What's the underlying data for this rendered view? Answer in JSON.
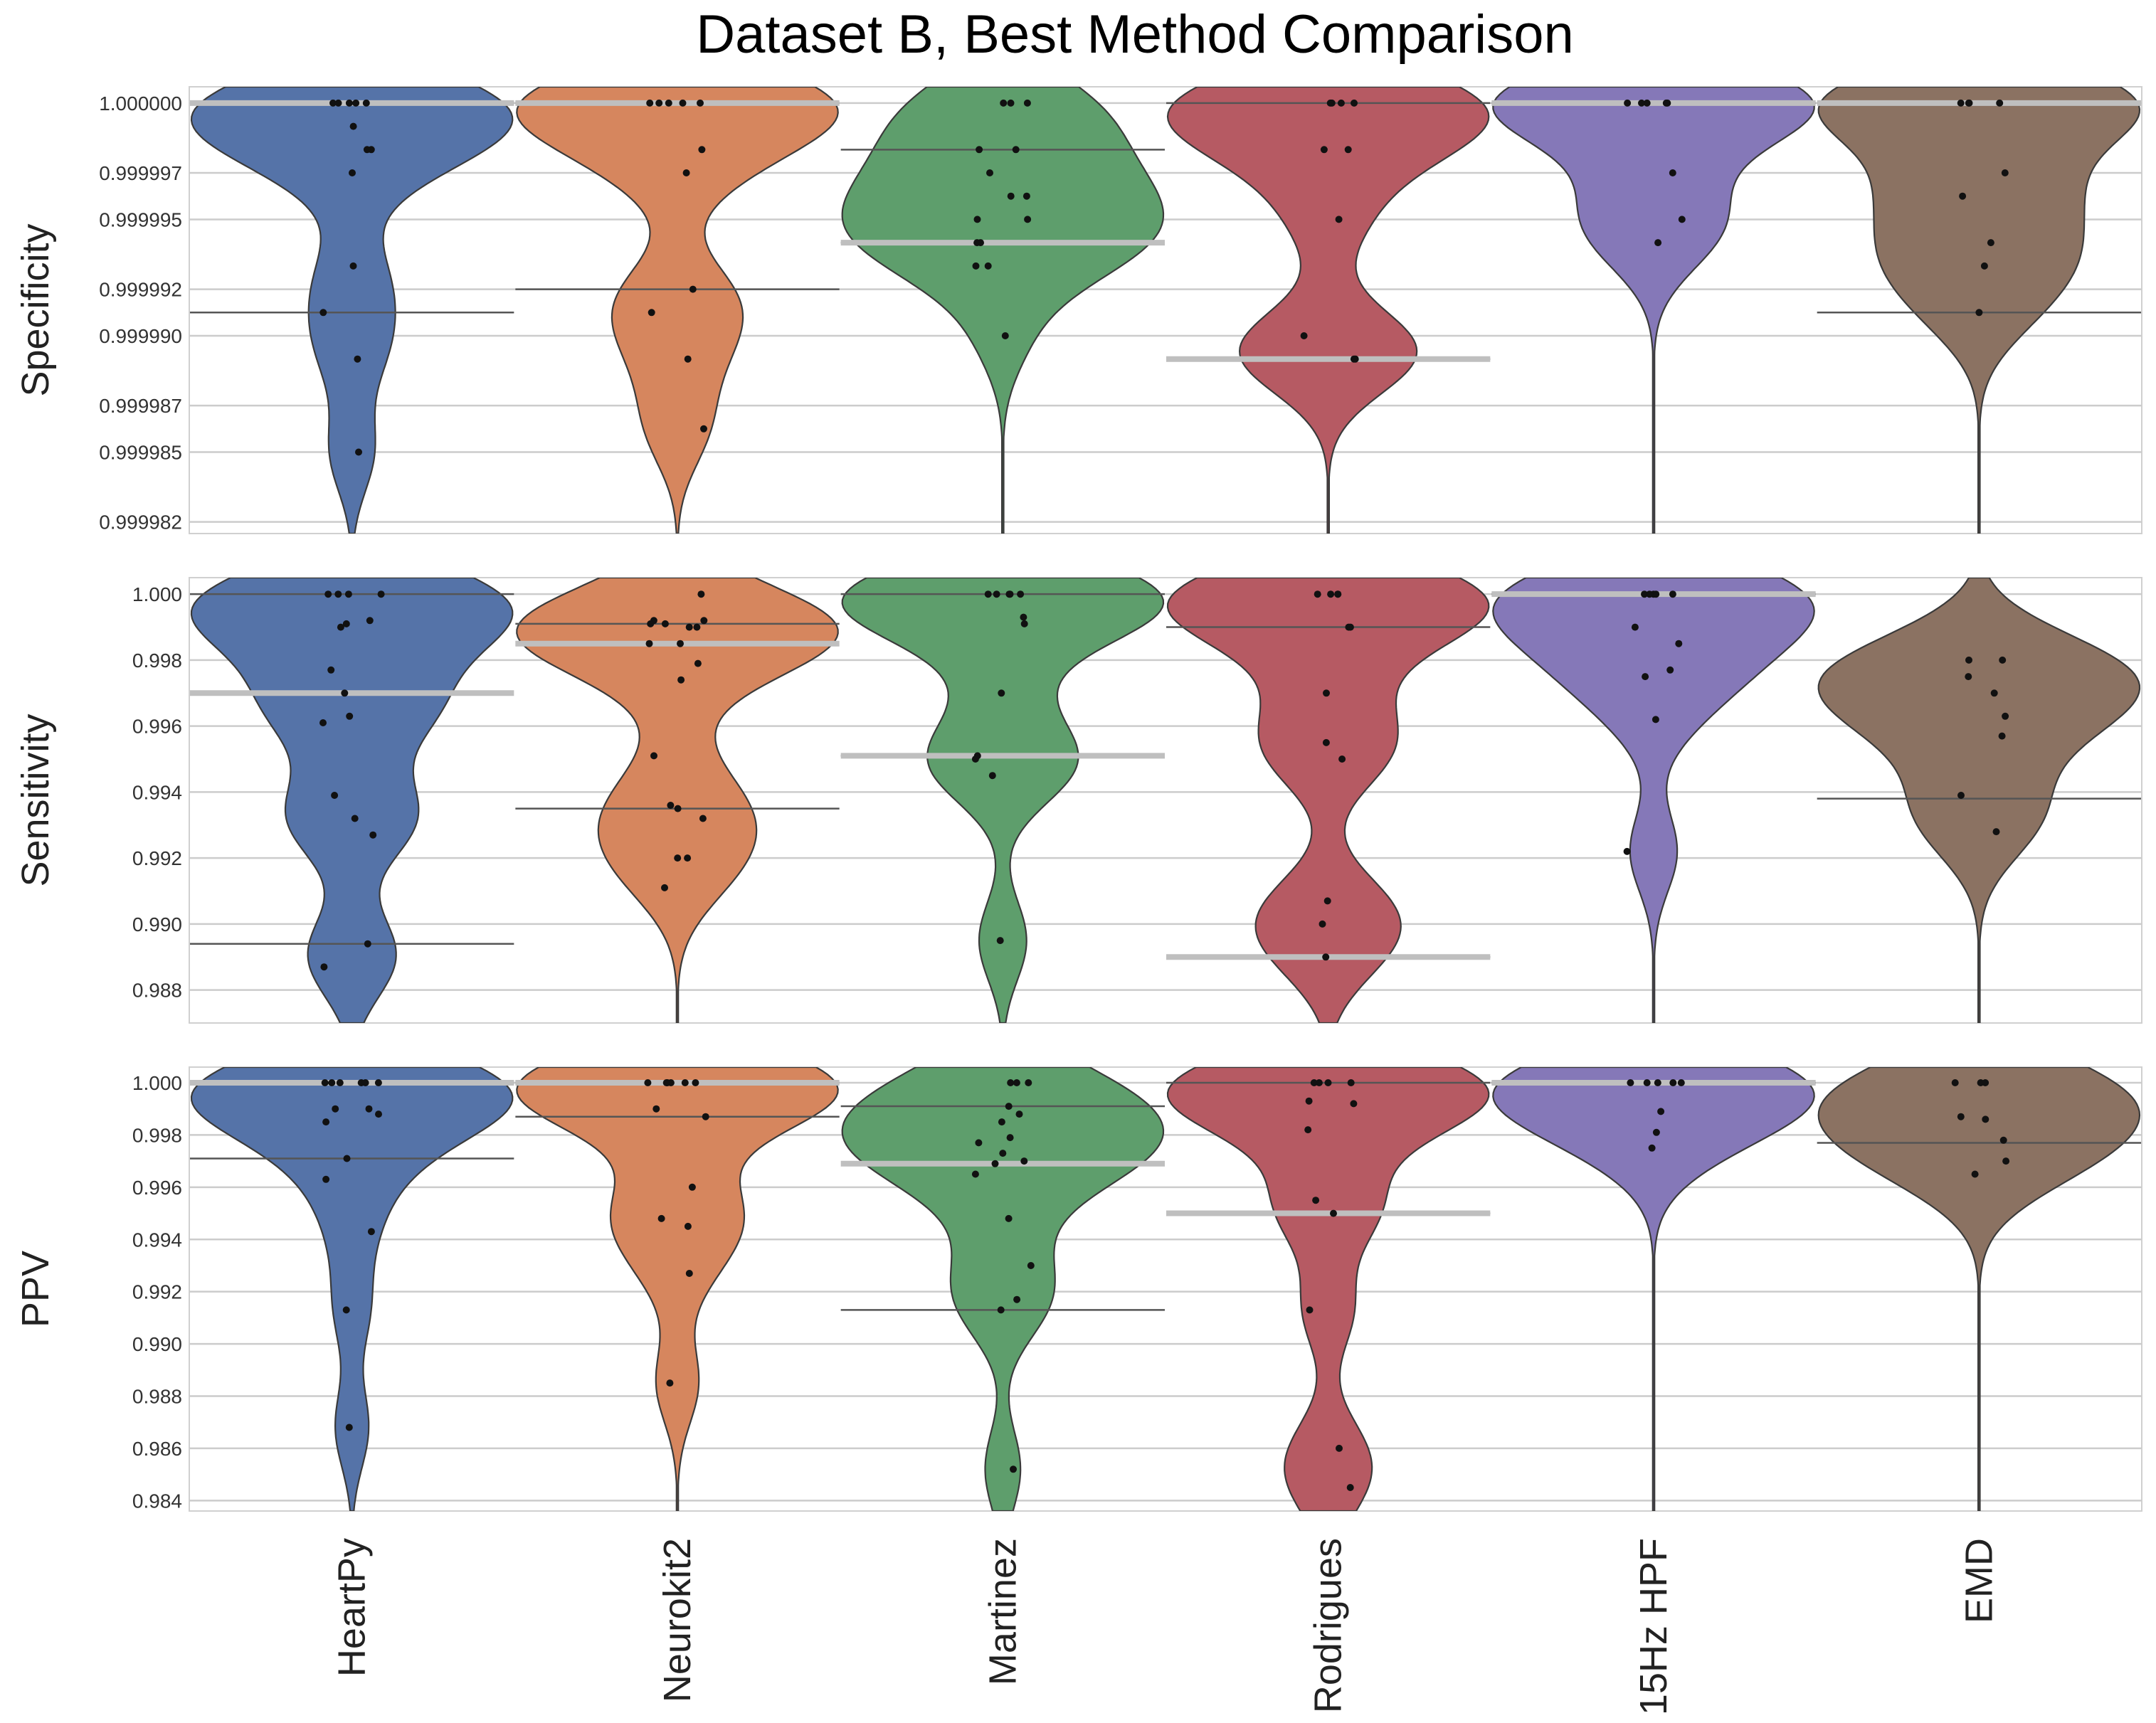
{
  "chart_data": {
    "type": "violin",
    "title": "Dataset B, Best Method Comparison",
    "categories": [
      "HeartPy",
      "Neurokit2",
      "Martinez",
      "Rodrigues",
      "15Hz HPF",
      "EMD"
    ],
    "colors": {
      "HeartPy": "#5573A8",
      "Neurokit2": "#D6865E",
      "Martinez": "#5E9E6C",
      "Rodrigues": "#B65A63",
      "15Hz HPF": "#8578B8",
      "EMD": "#8B7262",
      "grid": "#CCCCCC",
      "median_line": "#BFBFBF",
      "quartile_line": "#555555",
      "point": "#111111"
    },
    "panels": [
      {
        "ylabel": "Specificity",
        "ylim": [
          0.9999815,
          1.0000007
        ],
        "ticks": [
          0.999982,
          0.999985,
          0.999987,
          0.99999,
          0.999992,
          0.999995,
          0.999997,
          1.0
        ],
        "tick_labels": [
          "0.999982",
          "0.999985",
          "0.999987",
          "0.999990",
          "0.999992",
          "0.999995",
          "0.999997",
          "1.000000"
        ],
        "series": [
          {
            "name": "HeartPy",
            "median": 1.0,
            "q_low": 0.999991,
            "q_high": 1.0,
            "points": [
              1.0,
              1.0,
              1.0,
              1.0,
              1.0,
              0.999998,
              0.999998,
              0.999997,
              0.999999,
              0.999993,
              0.999991,
              0.999989,
              0.999985
            ]
          },
          {
            "name": "Neurokit2",
            "median": 1.0,
            "q_low": 0.999992,
            "q_high": 1.0,
            "points": [
              1.0,
              1.0,
              1.0,
              1.0,
              1.0,
              0.999998,
              0.999997,
              0.999992,
              0.999991,
              0.999989,
              0.999986
            ]
          },
          {
            "name": "Martinez",
            "median": 0.999994,
            "q_low": 0.999994,
            "q_high": 0.999998,
            "points": [
              1.0,
              1.0,
              1.0,
              0.999998,
              0.999998,
              0.999997,
              0.999996,
              0.999996,
              0.999995,
              0.999995,
              0.999994,
              0.999994,
              0.999993,
              0.999993,
              0.99999
            ]
          },
          {
            "name": "Rodrigues",
            "median": 0.999989,
            "q_low": 0.999989,
            "q_high": 1.0,
            "points": [
              1.0,
              1.0,
              1.0,
              1.0,
              0.999998,
              0.999998,
              0.999995,
              0.99999,
              0.999989,
              0.999989
            ]
          },
          {
            "name": "15Hz HPF",
            "median": 1.0,
            "q_low": 1.0,
            "q_high": 1.0,
            "points": [
              1.0,
              1.0,
              1.0,
              1.0,
              1.0,
              0.999997,
              0.999995,
              0.999994
            ]
          },
          {
            "name": "EMD",
            "median": 1.0,
            "q_low": 0.999991,
            "q_high": 1.0,
            "points": [
              1.0,
              1.0,
              1.0,
              1.0,
              0.999997,
              0.999996,
              0.999994,
              0.999993,
              0.999991
            ]
          }
        ]
      },
      {
        "ylabel": "Sensitivity",
        "ylim": [
          0.987,
          1.0005
        ],
        "ticks": [
          0.988,
          0.99,
          0.992,
          0.994,
          0.996,
          0.998,
          1.0
        ],
        "tick_labels": [
          "0.988",
          "0.990",
          "0.992",
          "0.994",
          "0.996",
          "0.998",
          "1.000"
        ],
        "series": [
          {
            "name": "HeartPy",
            "median": 0.997,
            "q_low": 0.9894,
            "q_high": 1.0,
            "points": [
              1.0,
              1.0,
              1.0,
              1.0,
              0.9992,
              0.9991,
              0.999,
              0.9977,
              0.997,
              0.9963,
              0.9961,
              0.9939,
              0.9932,
              0.9927,
              0.9894,
              0.9887
            ]
          },
          {
            "name": "Neurokit2",
            "median": 0.9985,
            "q_low": 0.9935,
            "q_high": 0.9991,
            "points": [
              1.0,
              0.9992,
              0.9992,
              0.9991,
              0.9991,
              0.999,
              0.999,
              0.9985,
              0.9985,
              0.9979,
              0.9974,
              0.9951,
              0.9936,
              0.9935,
              0.9932,
              0.992,
              0.992,
              0.9911
            ]
          },
          {
            "name": "Martinez",
            "median": 0.9951,
            "q_low": 0.9951,
            "q_high": 1.0,
            "points": [
              1.0,
              1.0,
              1.0,
              1.0,
              1.0,
              0.9993,
              0.9991,
              0.997,
              0.9951,
              0.995,
              0.9945,
              0.9895
            ]
          },
          {
            "name": "Rodrigues",
            "median": 0.989,
            "q_low": 0.989,
            "q_high": 0.999,
            "points": [
              1.0,
              1.0,
              1.0,
              1.0,
              0.999,
              0.999,
              0.997,
              0.9955,
              0.995,
              0.9907,
              0.99,
              0.989
            ]
          },
          {
            "name": "15Hz HPF",
            "median": 1.0,
            "q_low": 1.0,
            "q_high": 1.0,
            "points": [
              1.0,
              1.0,
              1.0,
              1.0,
              1.0,
              0.999,
              0.9985,
              0.9977,
              0.9975,
              0.9962,
              0.9922
            ]
          },
          {
            "name": "EMD",
            "median": null,
            "q_low": 0.9938,
            "q_high": null,
            "points": [
              0.998,
              0.998,
              0.9975,
              0.997,
              0.9963,
              0.9957,
              0.9939,
              0.9928
            ]
          }
        ]
      },
      {
        "ylabel": "PPV",
        "ylim": [
          0.9836,
          1.0006
        ],
        "ticks": [
          0.984,
          0.986,
          0.988,
          0.99,
          0.992,
          0.994,
          0.996,
          0.998,
          1.0
        ],
        "tick_labels": [
          "0.984",
          "0.986",
          "0.988",
          "0.990",
          "0.992",
          "0.994",
          "0.996",
          "0.998",
          "1.000"
        ],
        "series": [
          {
            "name": "HeartPy",
            "median": 1.0,
            "q_low": 0.9971,
            "q_high": 1.0,
            "points": [
              1.0,
              1.0,
              1.0,
              1.0,
              1.0,
              1.0,
              0.999,
              0.999,
              0.9988,
              0.9985,
              0.9971,
              0.9963,
              0.9943,
              0.9913,
              0.9868
            ]
          },
          {
            "name": "Neurokit2",
            "median": 1.0,
            "q_low": 0.9987,
            "q_high": 1.0,
            "points": [
              1.0,
              1.0,
              1.0,
              1.0,
              1.0,
              1.0,
              0.999,
              0.9987,
              0.996,
              0.9948,
              0.9945,
              0.9927,
              0.9885
            ]
          },
          {
            "name": "Martinez",
            "median": 0.9969,
            "q_low": 0.9913,
            "q_high": 0.9991,
            "points": [
              1.0,
              1.0,
              1.0,
              0.9991,
              0.9988,
              0.9985,
              0.9979,
              0.9977,
              0.9973,
              0.997,
              0.9969,
              0.9965,
              0.9948,
              0.993,
              0.9917,
              0.9913,
              0.9852
            ]
          },
          {
            "name": "Rodrigues",
            "median": 0.995,
            "q_low": 0.995,
            "q_high": 1.0,
            "points": [
              1.0,
              1.0,
              1.0,
              1.0,
              0.9993,
              0.9992,
              0.9982,
              0.9955,
              0.995,
              0.9913,
              0.986,
              0.9845
            ]
          },
          {
            "name": "15Hz HPF",
            "median": 1.0,
            "q_low": 1.0,
            "q_high": 1.0,
            "points": [
              1.0,
              1.0,
              1.0,
              1.0,
              1.0,
              0.9989,
              0.9981,
              0.9975
            ]
          },
          {
            "name": "EMD",
            "median": null,
            "q_low": 0.9977,
            "q_high": null,
            "points": [
              1.0,
              1.0,
              1.0,
              0.9987,
              0.9986,
              0.9978,
              0.997,
              0.9965
            ]
          }
        ]
      }
    ]
  }
}
